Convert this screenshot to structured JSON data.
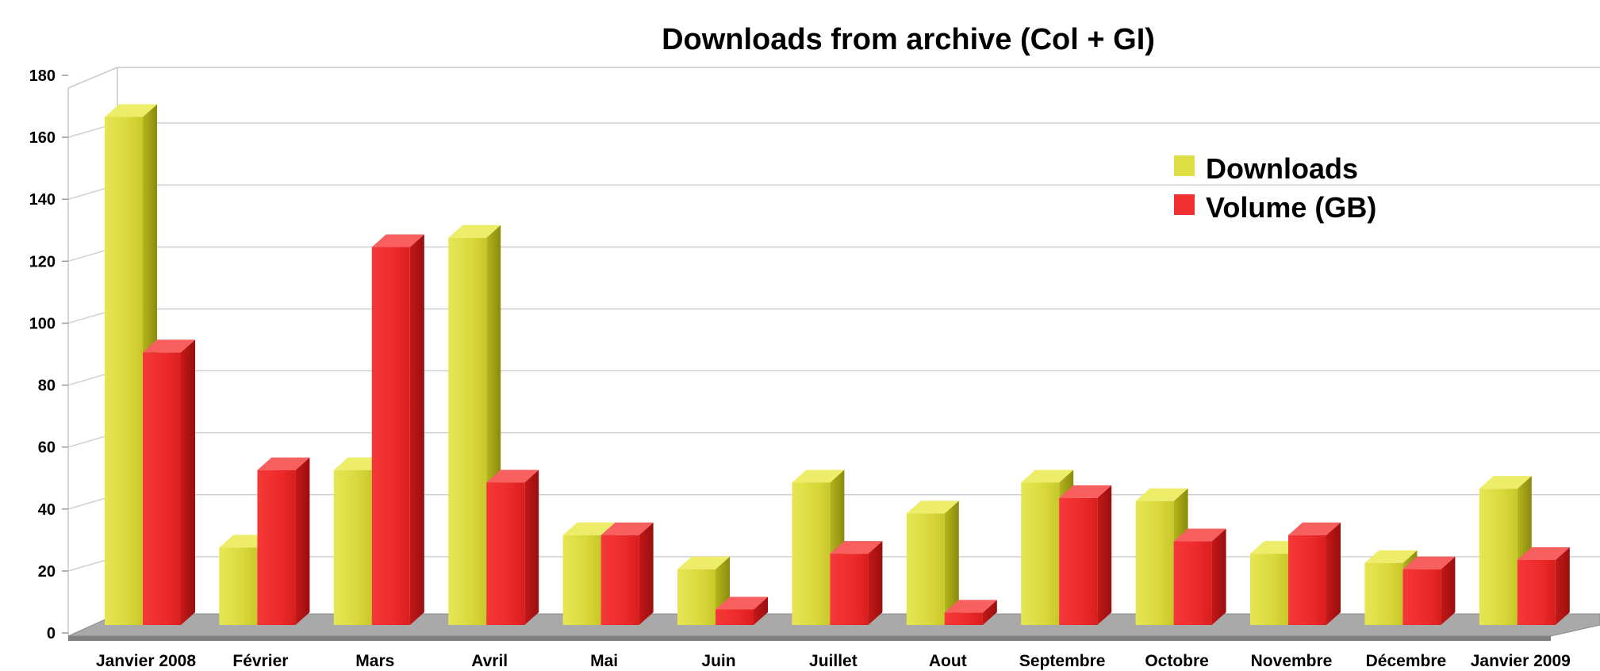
{
  "chart_data": {
    "type": "bar",
    "title": "Downloads from archive (Col + GI)",
    "xlabel": "",
    "ylabel": "",
    "ylim": [
      0,
      180
    ],
    "yticks": [
      0,
      20,
      40,
      60,
      80,
      100,
      120,
      140,
      160,
      180
    ],
    "grid": true,
    "legend_position": "top-right",
    "categories": [
      "Janvier 2008",
      "Février",
      "Mars",
      "Avril",
      "Mai",
      "Juin",
      "Juillet",
      "Aout",
      "Septembre",
      "Octobre",
      "Novembre",
      "Décembre",
      "Janvier 2009"
    ],
    "series": [
      {
        "name": "Downloads",
        "color": "#dede45",
        "values": [
          164,
          25,
          50,
          125,
          29,
          18,
          46,
          36,
          46,
          40,
          23,
          20,
          44
        ]
      },
      {
        "name": "Volume (GB)",
        "color": "#f03030",
        "values": [
          88,
          50,
          122,
          46,
          29,
          5,
          23,
          4,
          41,
          27,
          29,
          18,
          21
        ]
      }
    ]
  }
}
